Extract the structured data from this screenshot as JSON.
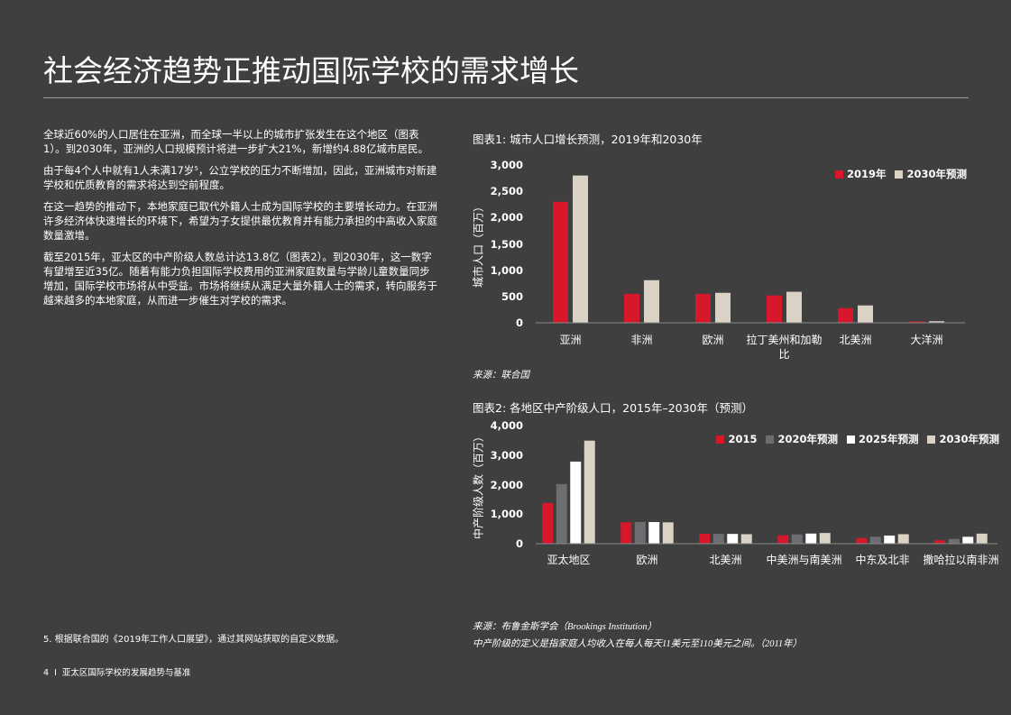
{
  "title": "社会经济趋势正推动国际学校的需求增长",
  "paragraphs": [
    "全球近60%的人口居住在亚洲，而全球一半以上的城市扩张发生在这个地区（图表1）。到2030年，亚洲的人口规模预计将进一步扩大21%，新增约4.88亿城市居民。",
    "由于每4个人中就有1人未满17岁⁵，公立学校的压力不断增加，因此，亚洲城市对新建学校和优质教育的需求将达到空前程度。",
    "在这一趋势的推动下，本地家庭已取代外籍人士成为国际学校的主要增长动力。在亚洲许多经济体快速增长的环境下，希望为子女提供最优教育并有能力承担的中高收入家庭数量激增。",
    "截至2015年，亚太区的中产阶级人数总计达13.8亿（图表2）。到2030年，这一数字有望增至近35亿。随着有能力负担国际学校费用的亚洲家庭数量与学龄儿童数量同步增加，国际学校市场将从中受益。市场将继续从满足大量外籍人士的需求，转向服务于越来越多的本地家庭，从而进一步催生对学校的需求。"
  ],
  "footnote": "5. 根据联合国的《2019年工作人口展望》，通过其网站获取的自定义数据。",
  "footer": "4  I  亚太区国际学校的发展趋势与基准",
  "chart_data": [
    {
      "type": "bar",
      "title": "图表1:  城市人口增长预测，2019年和2030年",
      "y_label": "城市人口（百万）",
      "categories": [
        "亚洲",
        "非洲",
        "欧洲",
        "拉丁美州和加勒比",
        "北美洲",
        "大洋洲"
      ],
      "series": [
        {
          "name": "2019年",
          "color": "#d7172a",
          "values": [
            2300,
            550,
            550,
            520,
            280,
            25
          ]
        },
        {
          "name": "2030年预测",
          "color": "#d9d2c5",
          "values": [
            2800,
            810,
            570,
            590,
            330,
            30
          ]
        }
      ],
      "ylim": [
        0,
        3000
      ],
      "yticks": [
        0,
        500,
        {
          "value": 1000,
          "label": "1,000"
        },
        {
          "value": 1500,
          "label": "1,500"
        },
        {
          "value": 2000,
          "label": "2,000"
        },
        {
          "value": 2500,
          "label": "2,500"
        },
        {
          "value": 3000,
          "label": "3,000"
        }
      ],
      "legend": "top-right",
      "source": "来源：联合国"
    },
    {
      "type": "bar",
      "title": "图表2:  各地区中产阶级人口，2015年–2030年（预测）",
      "y_label": "中产阶级人数（百万）",
      "categories": [
        "亚太地区",
        "欧洲",
        "北美洲",
        "中美洲与南美洲",
        "中东及北非",
        "撒哈拉以南非洲"
      ],
      "series": [
        {
          "name": "2015",
          "color": "#d7172a",
          "values": [
            1380,
            724,
            335,
            285,
            192,
            114
          ]
        },
        {
          "name": "2020年预测",
          "color": "#6d6e71",
          "values": [
            2020,
            734,
            333,
            313,
            234,
            162
          ]
        },
        {
          "name": "2025年预测",
          "color": "#ffffff",
          "values": [
            2780,
            733,
            331,
            343,
            275,
            234
          ]
        },
        {
          "name": "2030年预测",
          "color": "#d9d2c5",
          "values": [
            3490,
            723,
            322,
            363,
            322,
            341
          ]
        }
      ],
      "ylim": [
        0,
        4000
      ],
      "yticks": [
        0,
        {
          "value": 1000,
          "label": "1,000"
        },
        {
          "value": 2000,
          "label": "2,000"
        },
        {
          "value": 3000,
          "label": "3,000"
        },
        {
          "value": 4000,
          "label": "4,000"
        }
      ],
      "legend": "top-right",
      "source": "来源：布鲁金斯学会（Brookings Institution）",
      "note": "中产阶级的定义是指家庭人均收入在每人每天11美元至110美元之间。（2011年）"
    }
  ]
}
